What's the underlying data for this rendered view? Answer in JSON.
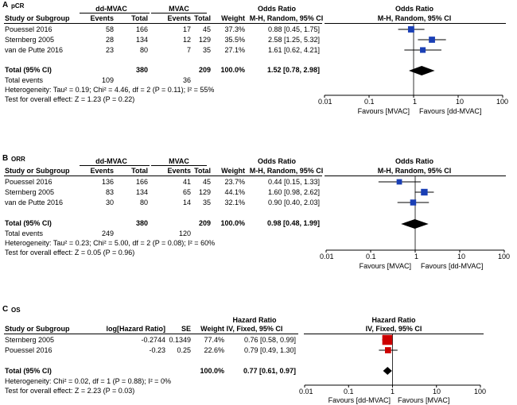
{
  "colors": {
    "box_fixed": "#cc0000",
    "box_random": "#1a3fb5",
    "ci": "#000000",
    "diamond": "#000000"
  },
  "chart_data": [
    {
      "type": "forest",
      "panel_letter": "A",
      "panel_title": "pCR",
      "group1": "dd-MVAC",
      "group2": "MVAC",
      "headers": {
        "study": "Study or Subgroup",
        "events1": "Events",
        "total1": "Total",
        "events2": "Events",
        "total2": "Total",
        "weight": "Weight",
        "effect": "Odds Ratio",
        "method": "M-H, Random, 95% CI",
        "plot_title": "Odds Ratio",
        "plot_method": "M-H, Random, 95% CI"
      },
      "studies": [
        {
          "name": "Pouessel 2016",
          "events1": "58",
          "total1": "166",
          "events2": "17",
          "total2": "45",
          "weight_label": "37.3%",
          "ci_label": "0.88 [0.45, 1.75]",
          "est": 0.88,
          "lo": 0.45,
          "hi": 1.75,
          "weight": 37.3
        },
        {
          "name": "Sternberg 2005",
          "events1": "28",
          "total1": "134",
          "events2": "12",
          "total2": "129",
          "weight_label": "35.5%",
          "ci_label": "2.58 [1.25, 5.32]",
          "est": 2.58,
          "lo": 1.25,
          "hi": 5.32,
          "weight": 35.5
        },
        {
          "name": "van de Putte 2016",
          "events1": "23",
          "total1": "80",
          "events2": "7",
          "total2": "35",
          "weight_label": "27.1%",
          "ci_label": "1.61 [0.62, 4.21]",
          "est": 1.61,
          "lo": 0.62,
          "hi": 4.21,
          "weight": 27.1
        }
      ],
      "total": {
        "label": "Total (95% CI)",
        "total1": "380",
        "total2": "209",
        "weight_label": "100.0%",
        "ci_label": "1.52 [0.78, 2.98]",
        "est": 1.52,
        "lo": 0.78,
        "hi": 2.98
      },
      "total_events": {
        "label": "Total events",
        "events1": "109",
        "events2": "36"
      },
      "heterogeneity": "Heterogeneity: Tau² = 0.19; Chi² = 4.46, df = 2 (P = 0.11); I² = 55%",
      "overall_effect": "Test for overall effect: Z = 1.23 (P = 0.22)",
      "axis": {
        "scale": "log",
        "ticks": [
          0.01,
          0.1,
          1,
          10,
          100
        ],
        "tick_labels": [
          "0.01",
          "0.1",
          "1",
          "10",
          "100"
        ],
        "left_label": "Favours [MVAC]",
        "right_label": "Favours [dd-MVAC]"
      }
    },
    {
      "type": "forest",
      "panel_letter": "B",
      "panel_title": "ORR",
      "group1": "dd-MVAC",
      "group2": "MVAC",
      "headers": {
        "study": "Study or Subgroup",
        "events1": "Events",
        "total1": "Total",
        "events2": "Events",
        "total2": "Total",
        "weight": "Weight",
        "effect": "Odds Ratio",
        "method": "M-H, Random, 95% CI",
        "plot_title": "Odds Ratio",
        "plot_method": "M-H, Random, 95% CI"
      },
      "studies": [
        {
          "name": "Pouessel 2016",
          "events1": "136",
          "total1": "166",
          "events2": "41",
          "total2": "45",
          "weight_label": "23.7%",
          "ci_label": "0.44 [0.15, 1.33]",
          "est": 0.44,
          "lo": 0.15,
          "hi": 1.33,
          "weight": 23.7
        },
        {
          "name": "Sternberg 2005",
          "events1": "83",
          "total1": "134",
          "events2": "65",
          "total2": "129",
          "weight_label": "44.1%",
          "ci_label": "1.60 [0.98, 2.62]",
          "est": 1.6,
          "lo": 0.98,
          "hi": 2.62,
          "weight": 44.1
        },
        {
          "name": "van de Putte 2016",
          "events1": "30",
          "total1": "80",
          "events2": "14",
          "total2": "35",
          "weight_label": "32.1%",
          "ci_label": "0.90 [0.40, 2.03]",
          "est": 0.9,
          "lo": 0.4,
          "hi": 2.03,
          "weight": 32.1
        }
      ],
      "total": {
        "label": "Total (95% CI)",
        "total1": "380",
        "total2": "209",
        "weight_label": "100.0%",
        "ci_label": "0.98 [0.48, 1.99]",
        "est": 0.98,
        "lo": 0.48,
        "hi": 1.99
      },
      "total_events": {
        "label": "Total events",
        "events1": "249",
        "events2": "120"
      },
      "heterogeneity": "Heterogeneity: Tau² = 0.23; Chi² = 5.00, df = 2 (P = 0.08); I² = 60%",
      "overall_effect": "Test for overall effect: Z = 0.05 (P = 0.96)",
      "axis": {
        "scale": "log",
        "ticks": [
          0.01,
          0.1,
          1,
          10,
          100
        ],
        "tick_labels": [
          "0.01",
          "0.1",
          "1",
          "10",
          "100"
        ],
        "left_label": "Favours [MVAC]",
        "right_label": "Favours [dd-MVAC]"
      }
    },
    {
      "type": "forest",
      "panel_letter": "C",
      "panel_title": "OS",
      "headers": {
        "study": "Study or Subgroup",
        "loghr": "log[Hazard Ratio]",
        "se": "SE",
        "weight": "Weight",
        "effect": "Hazard Ratio",
        "method": "IV, Fixed, 95% CI",
        "plot_title": "Hazard Ratio",
        "plot_method": "IV, Fixed, 95% CI"
      },
      "studies": [
        {
          "name": "Sternberg 2005",
          "loghr": "-0.2744",
          "se": "0.1349",
          "weight_label": "77.4%",
          "ci_label": "0.76 [0.58, 0.99]",
          "est": 0.76,
          "lo": 0.58,
          "hi": 0.99,
          "weight": 77.4
        },
        {
          "name": "Pouessel 2016",
          "loghr": "-0.23",
          "se": "0.25",
          "weight_label": "22.6%",
          "ci_label": "0.79 [0.49, 1.30]",
          "est": 0.79,
          "lo": 0.49,
          "hi": 1.3,
          "weight": 22.6
        }
      ],
      "total": {
        "label": "Total (95% CI)",
        "weight_label": "100.0%",
        "ci_label": "0.77 [0.61, 0.97]",
        "est": 0.77,
        "lo": 0.61,
        "hi": 0.97
      },
      "heterogeneity": "Heterogeneity: Chi² = 0.02, df = 1 (P = 0.88); I² = 0%",
      "overall_effect": "Test for overall effect: Z = 2.23 (P = 0.03)",
      "axis": {
        "scale": "log",
        "ticks": [
          0.01,
          0.1,
          1,
          10,
          100
        ],
        "tick_labels": [
          "0.01",
          "0.1",
          "1",
          "10",
          "100"
        ],
        "left_label": "Favours [dd-MVAC]",
        "right_label": "Favours [MVAC]"
      }
    }
  ]
}
